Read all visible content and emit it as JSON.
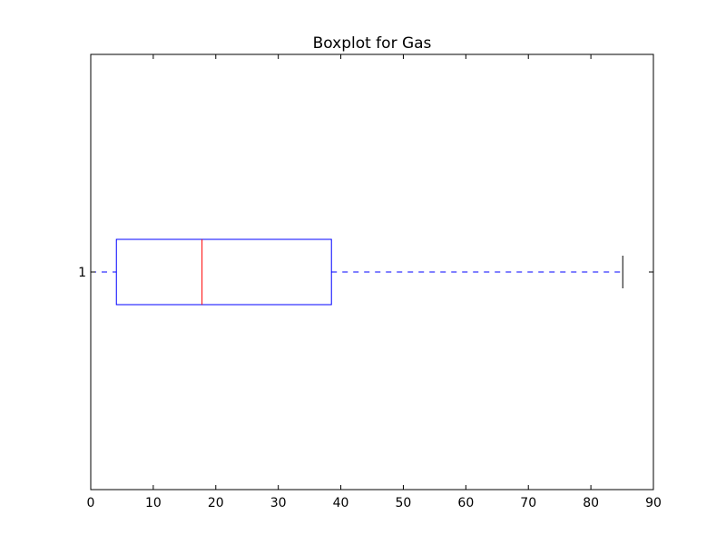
{
  "chart_data": {
    "type": "boxplot",
    "orientation": "horizontal",
    "title": "Boxplot for Gas",
    "xlabel": "",
    "ylabel": "",
    "xlim": [
      0,
      90
    ],
    "xticks": [
      0,
      10,
      20,
      30,
      40,
      50,
      60,
      70,
      80,
      90
    ],
    "xtick_labels": [
      "0",
      "10",
      "20",
      "30",
      "40",
      "50",
      "60",
      "70",
      "80",
      "90"
    ],
    "grid": false,
    "categories": [
      "1"
    ],
    "boxes": [
      {
        "label": "1",
        "whisker_low": 0,
        "q1": 4.1,
        "median": 17.8,
        "q3": 38.5,
        "whisker_high": 85.1
      }
    ],
    "colors": {
      "box": "#0000ff",
      "median": "#ff0000",
      "whisker": "#0000ff",
      "cap": "#000000",
      "axes": "#000000"
    }
  }
}
